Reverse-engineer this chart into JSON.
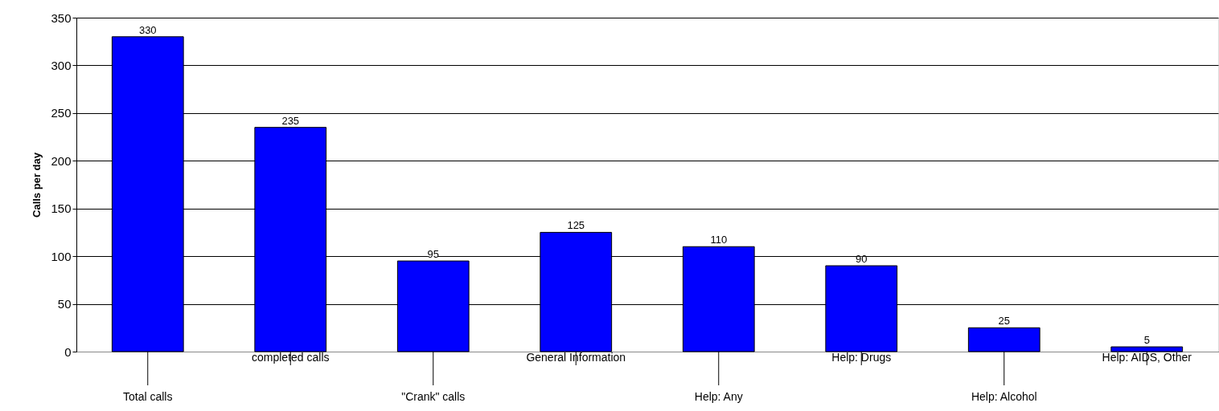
{
  "chart_data": {
    "type": "bar",
    "ylabel": "Calls per day",
    "categories": [
      "Total calls",
      "completed calls",
      "\"Crank\" calls",
      "General Information",
      "Help: Any",
      "Help: Drugs",
      "Help: Alcohol",
      "Help: AIDS, Other"
    ],
    "values": [
      330,
      235,
      95,
      125,
      110,
      90,
      25,
      5
    ],
    "color": "#0000ff",
    "ylim": [
      0,
      350
    ],
    "yticks": [
      0,
      50,
      100,
      150,
      200,
      250,
      300,
      350
    ],
    "grid": "y",
    "data_labels": true
  }
}
